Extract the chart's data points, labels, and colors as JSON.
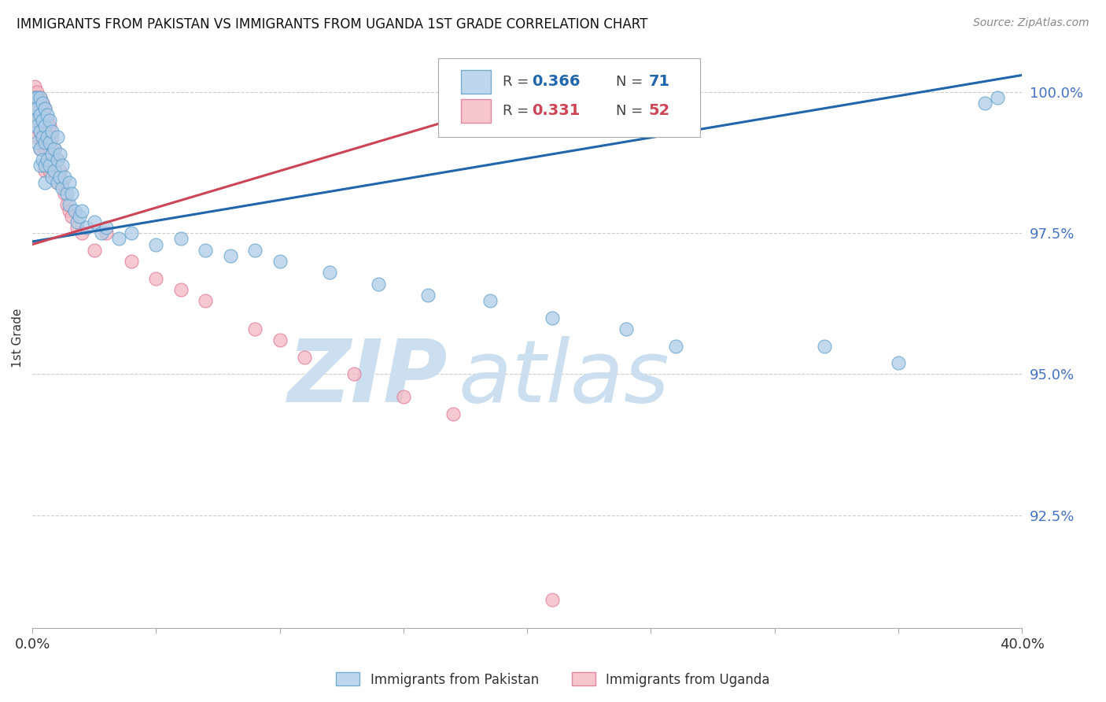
{
  "title": "IMMIGRANTS FROM PAKISTAN VS IMMIGRANTS FROM UGANDA 1ST GRADE CORRELATION CHART",
  "source": "Source: ZipAtlas.com",
  "ylabel": "1st Grade",
  "xlim": [
    0.0,
    0.4
  ],
  "ylim": [
    0.905,
    1.008
  ],
  "yticks": [
    0.925,
    0.95,
    0.975,
    1.0
  ],
  "ytick_labels": [
    "92.5%",
    "95.0%",
    "97.5%",
    "100.0%"
  ],
  "xticks": [
    0.0,
    0.05,
    0.1,
    0.15,
    0.2,
    0.25,
    0.3,
    0.35,
    0.4
  ],
  "legend_pakistan": "Immigrants from Pakistan",
  "legend_uganda": "Immigrants from Uganda",
  "R_pakistan": 0.366,
  "N_pakistan": 71,
  "R_uganda": 0.331,
  "N_uganda": 52,
  "pakistan_color": "#aecde8",
  "uganda_color": "#f4b8c1",
  "pakistan_edge_color": "#5a9ec9",
  "uganda_edge_color": "#e07090",
  "pakistan_line_color": "#2166ac",
  "uganda_line_color": "#cc4455",
  "background_color": "#ffffff",
  "pak_line_x0": 0.0,
  "pak_line_x1": 0.4,
  "pak_line_y0": 0.9735,
  "pak_line_y1": 1.003,
  "uga_line_x0": 0.0,
  "uga_line_x1": 0.215,
  "uga_line_y0": 0.973,
  "uga_line_y1": 1.001,
  "pak_x": [
    0.001,
    0.001,
    0.001,
    0.002,
    0.002,
    0.002,
    0.002,
    0.003,
    0.003,
    0.003,
    0.003,
    0.003,
    0.004,
    0.004,
    0.004,
    0.004,
    0.005,
    0.005,
    0.005,
    0.005,
    0.005,
    0.006,
    0.006,
    0.006,
    0.007,
    0.007,
    0.007,
    0.008,
    0.008,
    0.008,
    0.009,
    0.009,
    0.01,
    0.01,
    0.01,
    0.011,
    0.011,
    0.012,
    0.012,
    0.013,
    0.014,
    0.015,
    0.015,
    0.016,
    0.017,
    0.018,
    0.019,
    0.02,
    0.022,
    0.025,
    0.028,
    0.03,
    0.035,
    0.04,
    0.05,
    0.06,
    0.07,
    0.08,
    0.09,
    0.1,
    0.12,
    0.14,
    0.16,
    0.185,
    0.21,
    0.24,
    0.26,
    0.32,
    0.35,
    0.385,
    0.39
  ],
  "pak_y": [
    0.999,
    0.997,
    0.995,
    0.999,
    0.997,
    0.994,
    0.991,
    0.999,
    0.996,
    0.993,
    0.99,
    0.987,
    0.998,
    0.995,
    0.992,
    0.988,
    0.997,
    0.994,
    0.991,
    0.987,
    0.984,
    0.996,
    0.992,
    0.988,
    0.995,
    0.991,
    0.987,
    0.993,
    0.989,
    0.985,
    0.99,
    0.986,
    0.992,
    0.988,
    0.984,
    0.989,
    0.985,
    0.987,
    0.983,
    0.985,
    0.982,
    0.984,
    0.98,
    0.982,
    0.979,
    0.977,
    0.978,
    0.979,
    0.976,
    0.977,
    0.975,
    0.976,
    0.974,
    0.975,
    0.973,
    0.974,
    0.972,
    0.971,
    0.972,
    0.97,
    0.968,
    0.966,
    0.964,
    0.963,
    0.96,
    0.958,
    0.955,
    0.955,
    0.952,
    0.998,
    0.999
  ],
  "uga_x": [
    0.001,
    0.001,
    0.001,
    0.001,
    0.002,
    0.002,
    0.002,
    0.002,
    0.003,
    0.003,
    0.003,
    0.003,
    0.004,
    0.004,
    0.004,
    0.005,
    0.005,
    0.005,
    0.005,
    0.006,
    0.006,
    0.006,
    0.007,
    0.007,
    0.007,
    0.008,
    0.008,
    0.009,
    0.009,
    0.01,
    0.01,
    0.011,
    0.012,
    0.013,
    0.014,
    0.015,
    0.016,
    0.018,
    0.02,
    0.025,
    0.03,
    0.04,
    0.05,
    0.06,
    0.07,
    0.09,
    0.1,
    0.11,
    0.13,
    0.15,
    0.17,
    0.21
  ],
  "uga_y": [
    1.001,
    0.999,
    0.997,
    0.995,
    1.0,
    0.998,
    0.995,
    0.992,
    0.999,
    0.996,
    0.993,
    0.99,
    0.998,
    0.995,
    0.991,
    0.997,
    0.994,
    0.99,
    0.986,
    0.995,
    0.992,
    0.988,
    0.994,
    0.99,
    0.986,
    0.992,
    0.988,
    0.99,
    0.986,
    0.988,
    0.984,
    0.986,
    0.984,
    0.982,
    0.98,
    0.979,
    0.978,
    0.976,
    0.975,
    0.972,
    0.975,
    0.97,
    0.967,
    0.965,
    0.963,
    0.958,
    0.956,
    0.953,
    0.95,
    0.946,
    0.943,
    0.91
  ]
}
